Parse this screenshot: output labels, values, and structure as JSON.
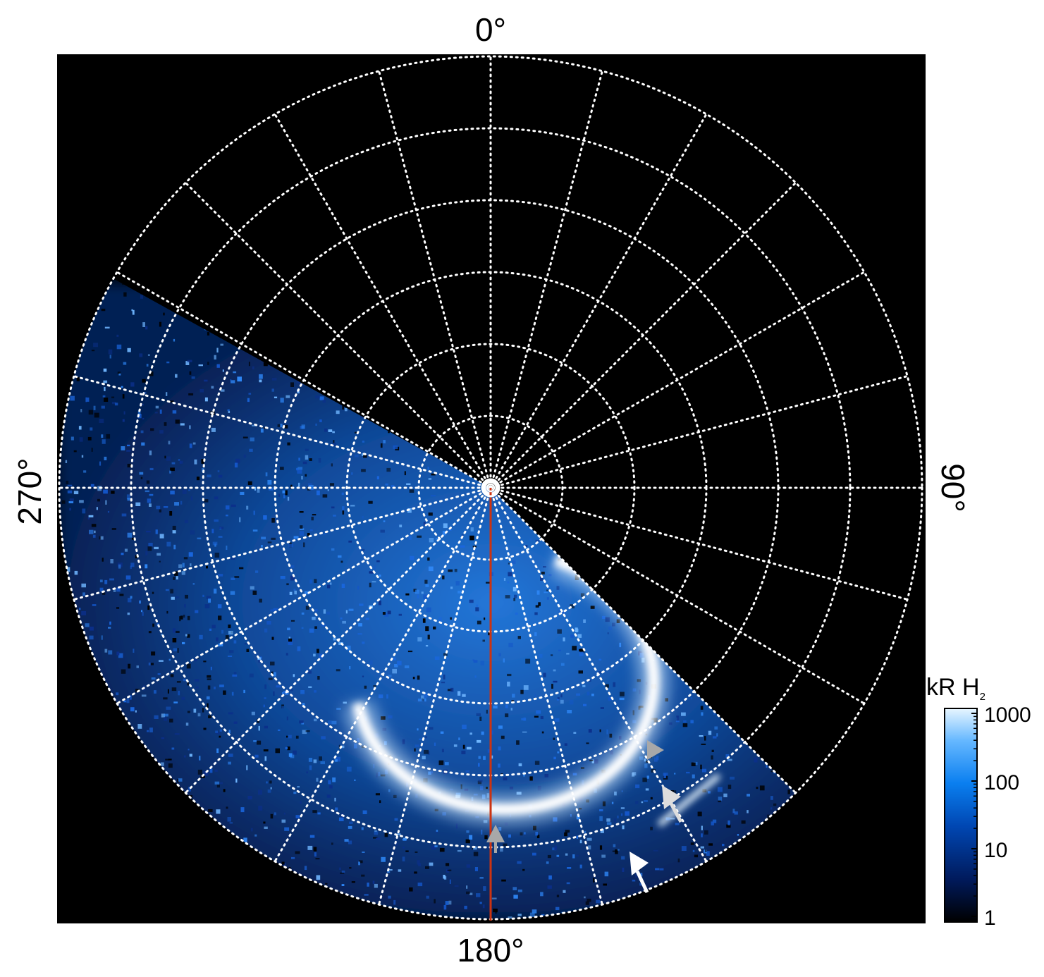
{
  "chart_data": {
    "type": "heatmap",
    "projection": "polar",
    "angle_labels": {
      "top": "0°",
      "right": "90°",
      "bottom": "180°",
      "left": "270°"
    },
    "colorbar": {
      "title_main": "kR H",
      "title_sub": "2",
      "scale": "log",
      "range": [
        1,
        1000
      ],
      "tick_labels": [
        "1000",
        "100",
        "10",
        "1"
      ],
      "tick_values": [
        1000,
        100,
        10,
        1
      ],
      "colors": [
        "#000000",
        "#001a5c",
        "#0047b3",
        "#0a7ff0",
        "#66b8ff",
        "#e8f6ff"
      ]
    },
    "grid": {
      "visible": true,
      "style": "dotted",
      "color": "#ffffff",
      "meridian_step_deg": 15,
      "circle_count": 6
    },
    "background": "#000000",
    "meridian_line": {
      "color": "#cc3311",
      "longitude_deg": 180
    },
    "emission": {
      "coverage_deg": [
        135,
        300
      ],
      "main_oval": {
        "color": "#ffffff",
        "center_rel": [
          0.0,
          0.35
        ],
        "radius_rel": 0.48
      },
      "noise_color": "#1a66dd"
    },
    "annotations": [
      {
        "kind": "arrow",
        "color": "#a8a8a8",
        "label": "gray-arrow-up"
      },
      {
        "kind": "arrow",
        "color": "#a8a8a8",
        "label": "gray-arrow-right"
      },
      {
        "kind": "arrow",
        "color": "#dddddd",
        "label": "gray-arrow-diagonal"
      },
      {
        "kind": "arrow",
        "color": "#ffffff",
        "label": "white-arrow-diagonal"
      }
    ]
  }
}
